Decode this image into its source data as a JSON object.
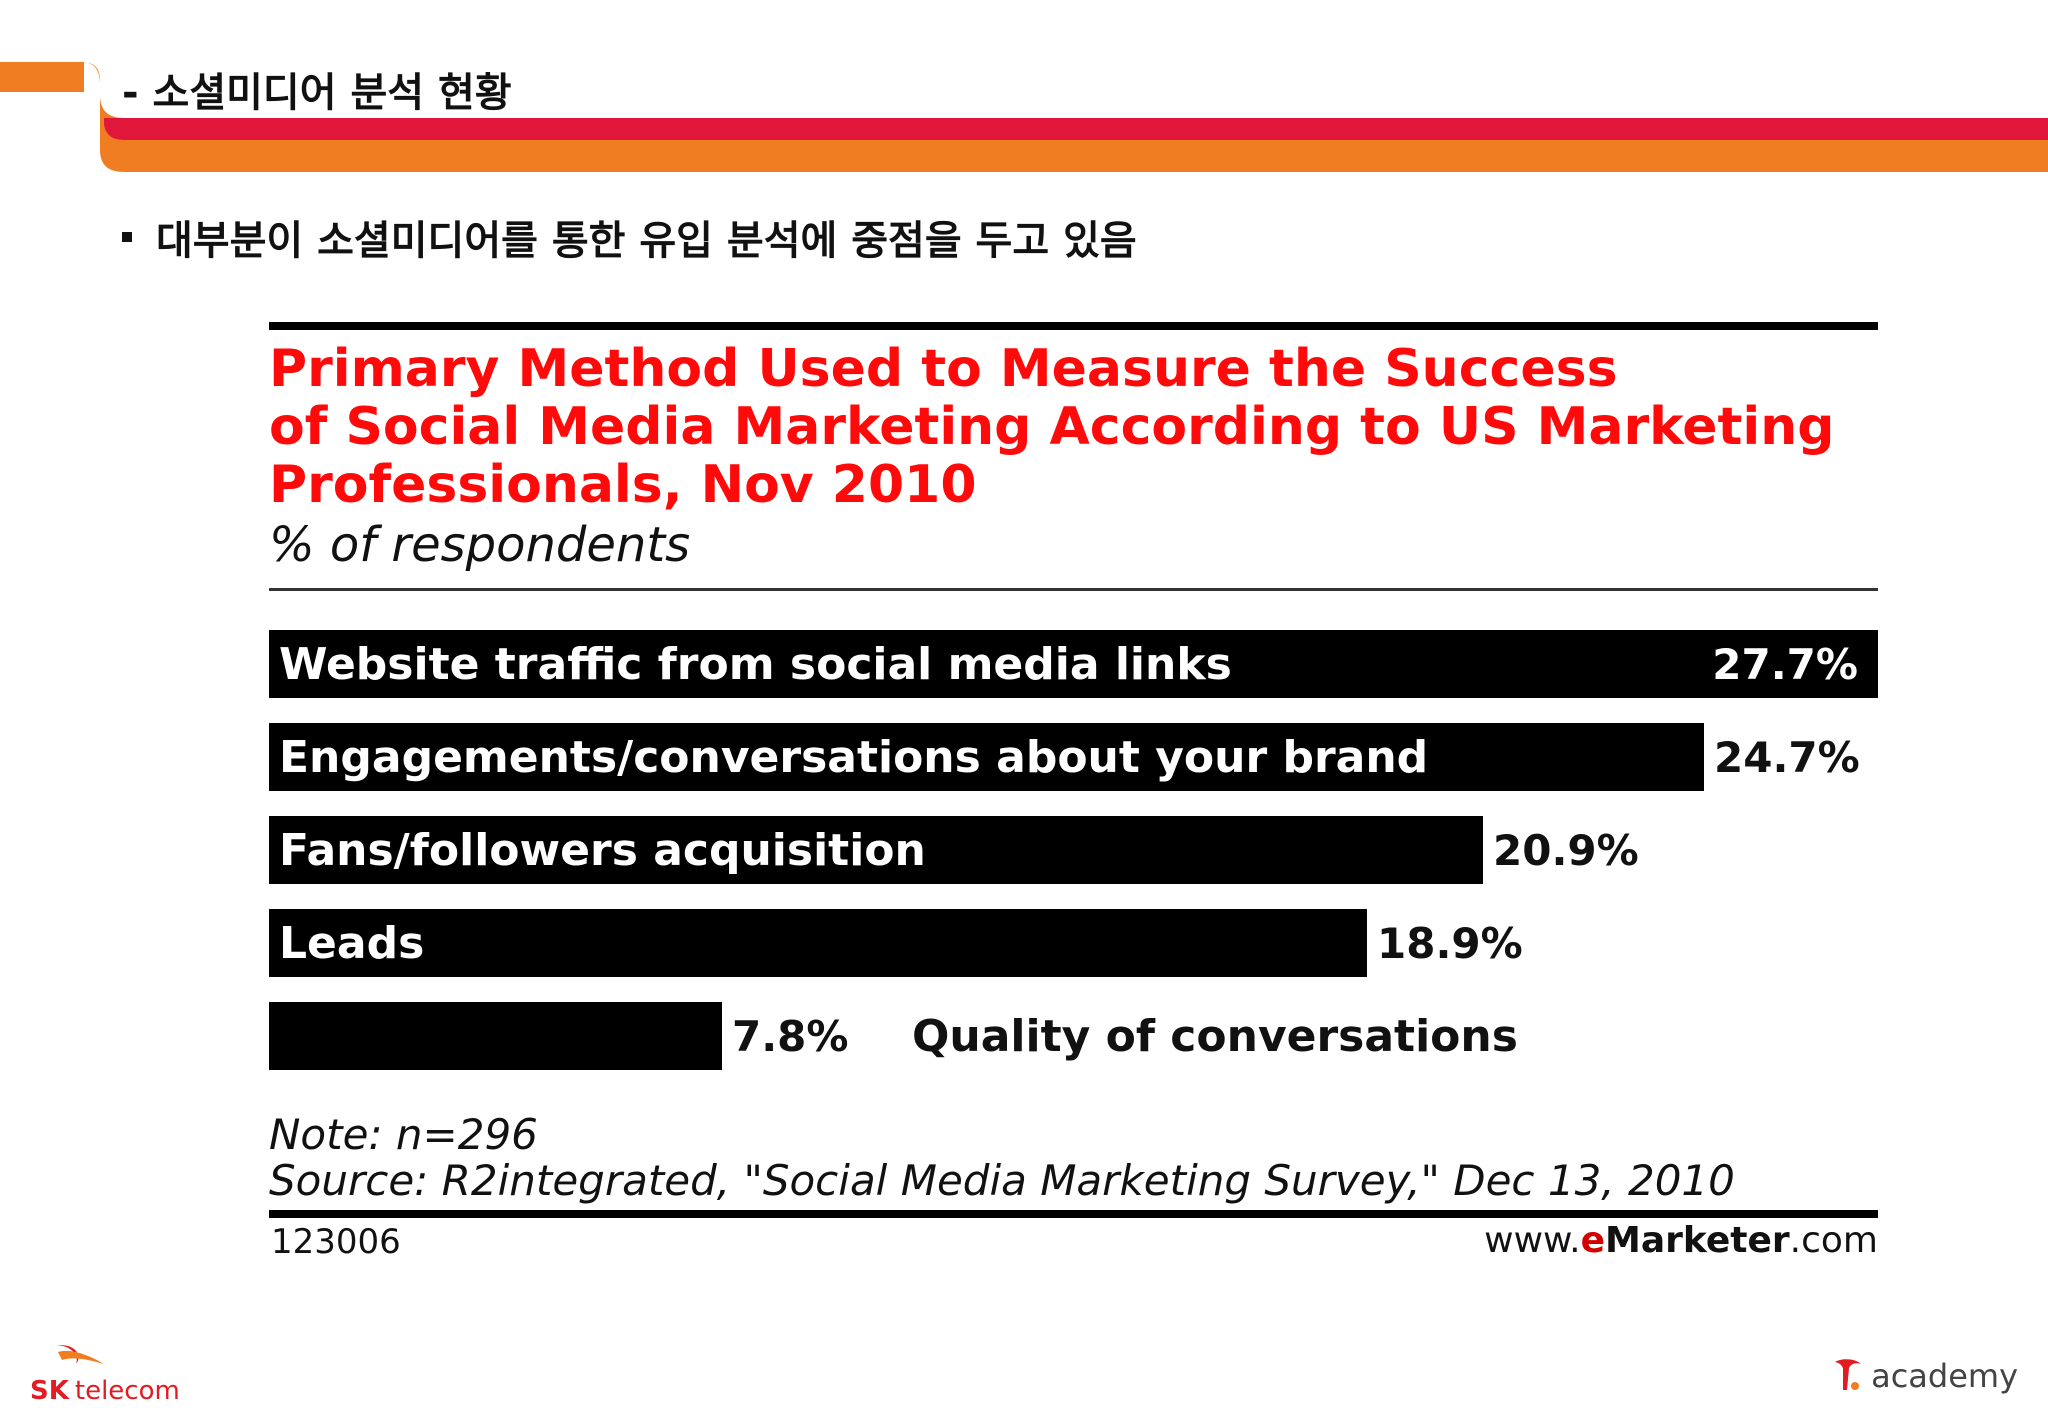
{
  "slide": {
    "title": "- 소셜미디어 분석 현황",
    "bullet": "대부분이 소셜미디어를 통한 유입 분석에 중점을 두고 있음"
  },
  "chart_data": {
    "type": "bar",
    "orientation": "horizontal",
    "title": "Primary Method Used to Measure the Success\nof Social Media Marketing According to US Marketing\nProfessionals, Nov 2010",
    "subtitle": "% of respondents",
    "unit": "%",
    "categories": [
      "Website traffic from social media links",
      "Engagements/conversations about your brand",
      "Fans/followers acquisition",
      "Leads",
      "Quality of conversations"
    ],
    "values": [
      27.7,
      24.7,
      20.9,
      18.9,
      7.8
    ],
    "value_labels": [
      "27.7%",
      "24.7%",
      "20.9%",
      "18.9%",
      "7.8%"
    ],
    "xlim": [
      0,
      27.7
    ],
    "grid": false,
    "legend": "none",
    "note": "Note: n=296",
    "source": "Source: R2integrated, \"Social Media Marketing Survey,\" Dec 13, 2010",
    "chart_id": "123006",
    "site_prefix": "www.",
    "site_e": "e",
    "site_brand": "Marketer",
    "site_suffix": ".com",
    "colors": {
      "title": "#ff0a0a",
      "bar": "#000000",
      "bar_label": "#ffffff"
    }
  },
  "footer": {
    "sk_brand": "SK",
    "sk_sub": "telecom",
    "academy": "academy"
  },
  "colors": {
    "orange": "#f07d22",
    "red": "#e0173a"
  }
}
